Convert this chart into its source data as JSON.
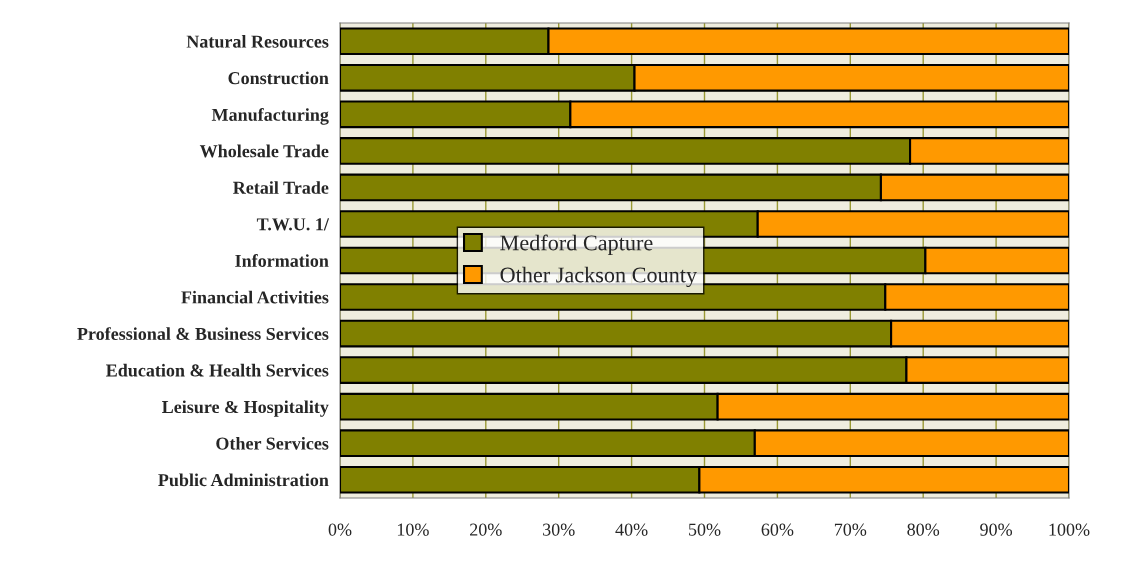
{
  "chart_data": {
    "type": "bar",
    "orientation": "horizontal",
    "stacked": true,
    "categories": [
      "Natural Resources",
      "Construction",
      "Manufacturing",
      "Wholesale Trade",
      "Retail Trade",
      "T.W.U. 1/",
      "Information",
      "Financial Activities",
      "Professional & Business Services",
      "Education & Health Services",
      "Leisure & Hospitality",
      "Other Services",
      "Public Administration"
    ],
    "series": [
      {
        "name": "Medford Capture",
        "color": "#808000",
        "values": [
          28.6,
          40.4,
          31.6,
          78.2,
          74.2,
          57.3,
          80.3,
          74.8,
          75.6,
          77.7,
          51.8,
          56.9,
          49.3
        ]
      },
      {
        "name": "Other Jackson County",
        "color": "#ff9900",
        "values": [
          71.4,
          59.6,
          68.4,
          21.8,
          25.8,
          42.7,
          19.7,
          25.2,
          24.4,
          22.3,
          48.2,
          43.1,
          50.7
        ]
      }
    ],
    "xlim": [
      0,
      100
    ],
    "xticks": [
      {
        "value": 0,
        "label": "0%"
      },
      {
        "value": 10,
        "label": "10%"
      },
      {
        "value": 20,
        "label": "20%"
      },
      {
        "value": 30,
        "label": "30%"
      },
      {
        "value": 40,
        "label": "40%"
      },
      {
        "value": 50,
        "label": "50%"
      },
      {
        "value": 60,
        "label": "60%"
      },
      {
        "value": 70,
        "label": "70%"
      },
      {
        "value": 80,
        "label": "80%"
      },
      {
        "value": 90,
        "label": "90%"
      },
      {
        "value": 100,
        "label": "100%"
      }
    ],
    "grid": "x",
    "legend": "center"
  }
}
